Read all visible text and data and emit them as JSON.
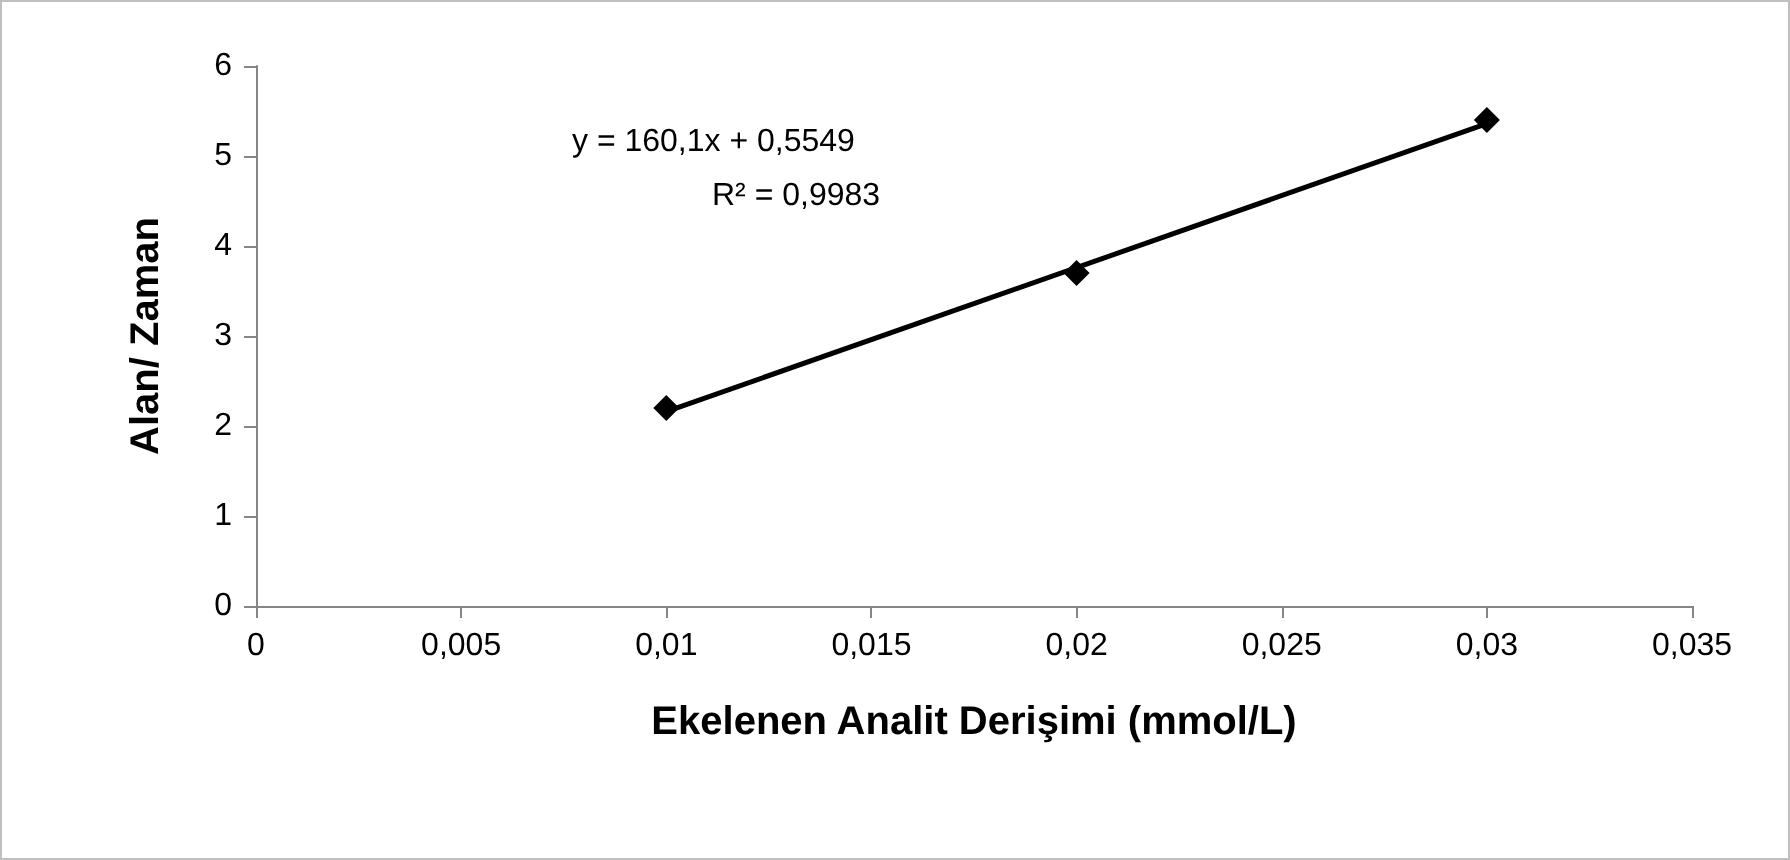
{
  "chart_data": {
    "type": "scatter",
    "xlabel": "Ekelenen Analit Derişimi (mmol/L)",
    "ylabel": "Alan/ Zaman",
    "annotations": [
      "y = 160,1x + 0,5549",
      "R² = 0,9983"
    ],
    "series": [
      {
        "color": "#000000",
        "marker": "diamond",
        "x": [
          0.01,
          0.02,
          0.03
        ],
        "values": [
          2.2,
          3.7,
          5.4
        ]
      },
      {
        "type": "line",
        "color": "#000000",
        "marker": "none",
        "x": [
          0.01,
          0.03
        ],
        "values": [
          2.16,
          5.36
        ]
      }
    ],
    "xlim": [
      0,
      0.035
    ],
    "xticks": [
      {
        "value": 0,
        "label": "0"
      },
      {
        "value": 0.005,
        "label": "0,005"
      },
      {
        "value": 0.01,
        "label": "0,01"
      },
      {
        "value": 0.015,
        "label": "0,015"
      },
      {
        "value": 0.02,
        "label": "0,02"
      },
      {
        "value": 0.025,
        "label": "0,025"
      },
      {
        "value": 0.03,
        "label": "0,03"
      },
      {
        "value": 0.035,
        "label": "0,035"
      }
    ],
    "ylim": [
      0,
      6
    ],
    "yticks": [
      0,
      1,
      2,
      3,
      4,
      5,
      6
    ],
    "grid": false
  }
}
